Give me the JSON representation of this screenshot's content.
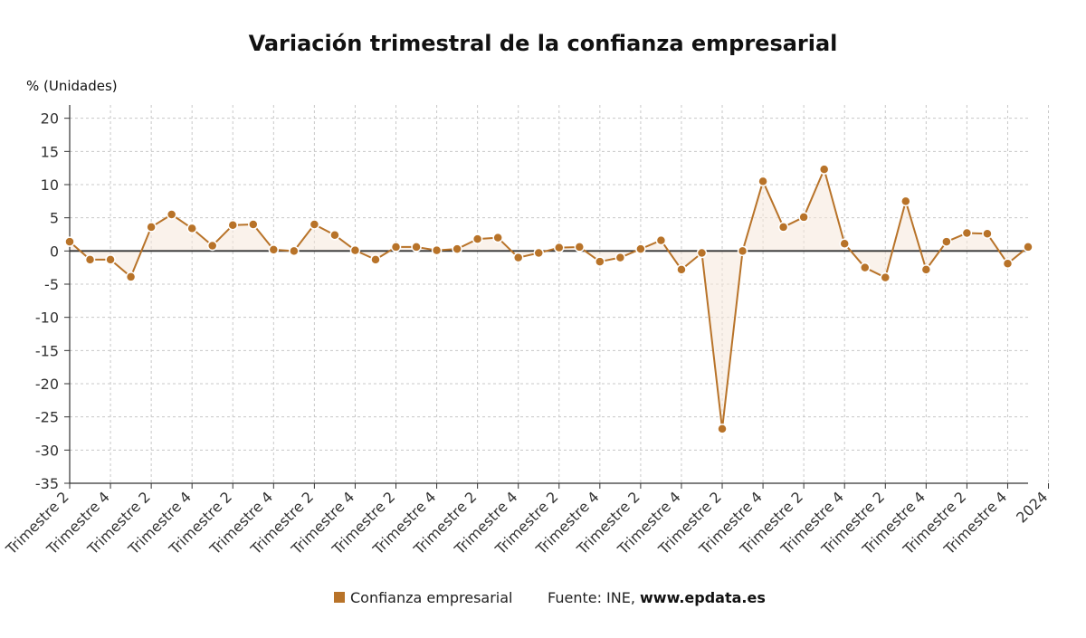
{
  "chart_data": {
    "type": "line",
    "title": "Variación trimestral de la confianza empresarial",
    "ylabel": "% (Unidades)",
    "ylim": [
      -35,
      22
    ],
    "yticks": [
      20,
      15,
      10,
      5,
      0,
      -5,
      -10,
      -15,
      -20,
      -25,
      -30,
      -35
    ],
    "x_tick_labels": [
      "Trimestre 2",
      "Trimestre 4",
      "Trimestre 2",
      "Trimestre 4",
      "Trimestre 2",
      "Trimestre 4",
      "Trimestre 2",
      "Trimestre 4",
      "Trimestre 2",
      "Trimestre 4",
      "Trimestre 2",
      "Trimestre 4",
      "Trimestre 2",
      "Trimestre 4",
      "Trimestre 2",
      "Trimestre 4",
      "Trimestre 2",
      "Trimestre 4",
      "Trimestre 2",
      "Trimestre 4",
      "Trimestre 2",
      "Trimestre 4",
      "Trimestre 2",
      "Trimestre 4",
      "2024"
    ],
    "grid": true,
    "legend_position": "bottom-center",
    "series": [
      {
        "name": "Confianza empresarial",
        "color": "#b87329",
        "values": [
          1.4,
          -1.3,
          -1.3,
          -3.9,
          3.6,
          5.5,
          3.4,
          0.8,
          3.9,
          4.0,
          0.2,
          0.0,
          4.0,
          2.4,
          0.1,
          -1.3,
          0.6,
          0.6,
          0.1,
          0.3,
          1.8,
          2.0,
          -1.0,
          -0.3,
          0.5,
          0.6,
          -1.6,
          -1.0,
          0.3,
          1.6,
          -2.8,
          -0.3,
          -26.8,
          0.0,
          10.5,
          3.6,
          5.1,
          12.3,
          1.1,
          -2.5,
          -4.0,
          7.5,
          -2.8,
          1.4,
          2.7,
          2.6,
          -1.9,
          0.6
        ]
      }
    ]
  },
  "source": {
    "prefix": "Fuente: INE, ",
    "site": "www.epdata.es"
  }
}
